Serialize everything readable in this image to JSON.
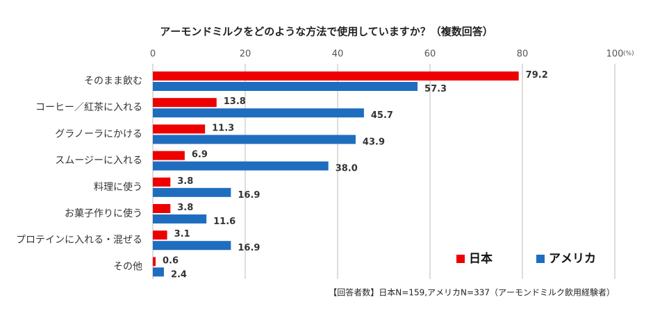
{
  "chart_data": {
    "type": "hbar",
    "title": "アーモンドミルクをどのような方法で使用していますか？（複数回答）",
    "categories": [
      "そのまま飲む",
      "コーヒー／紅茶に入れる",
      "グラノーラにかける",
      "スムージーに入れる",
      "料理に使う",
      "お菓子作りに使う",
      "プロテインに入れる・混ぜる",
      "その他"
    ],
    "series": [
      {
        "name": "日本",
        "color": "#ee0000",
        "values": [
          79.2,
          13.8,
          11.3,
          6.9,
          3.8,
          3.8,
          3.1,
          0.6
        ],
        "value_labels": [
          "79.2",
          "13.8",
          "11.3",
          "6.9",
          "3.8",
          "3.8",
          "3.1",
          "0.6"
        ]
      },
      {
        "name": "アメリカ",
        "color": "#1f6dbf",
        "values": [
          57.3,
          45.7,
          43.9,
          38.0,
          16.9,
          11.6,
          16.9,
          2.4
        ],
        "value_labels": [
          "57.3",
          "45.7",
          "43.9",
          "38.0",
          "16.9",
          "11.6",
          "16.9",
          "2.4"
        ]
      }
    ],
    "xlim": [
      0,
      100
    ],
    "xticks": [
      0,
      20,
      40,
      60,
      80,
      100
    ],
    "xunit": "(%)",
    "grid": true,
    "legend": "bottom-right",
    "footnote": "【回答者数】日本N=159,アメリカN=337（アーモンドミルク飲用経験者）"
  }
}
